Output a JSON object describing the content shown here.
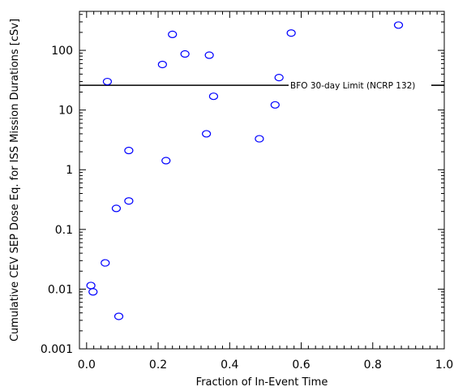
{
  "chart_data": {
    "type": "scatter",
    "xlabel": "Fraction of In-Event Time",
    "ylabel": "Cumulative CEV SEP Dose Eq. for ISS Mission Durations [cSv]",
    "xlim": [
      -0.02,
      1.0
    ],
    "ylim": [
      0.001,
      450
    ],
    "y_scale": "log",
    "x_ticks": [
      0.0,
      0.2,
      0.4,
      0.6,
      0.8,
      1.0
    ],
    "x_tick_labels": [
      "0.0",
      "0.2",
      "0.4",
      "0.6",
      "0.8",
      "1.0"
    ],
    "y_ticks": [
      0.001,
      0.01,
      0.1,
      1,
      10,
      100
    ],
    "y_tick_labels": [
      "0.001",
      "0.01",
      "0.1",
      "1",
      "10",
      "100"
    ],
    "grid": false,
    "marker_color": "#0000ff",
    "series": [
      {
        "points": [
          [
            0.012,
            0.0115
          ],
          [
            0.018,
            0.009
          ],
          [
            0.052,
            0.0275
          ],
          [
            0.058,
            30
          ],
          [
            0.083,
            0.225
          ],
          [
            0.09,
            0.0035
          ],
          [
            0.118,
            0.3
          ],
          [
            0.118,
            2.1
          ],
          [
            0.212,
            58
          ],
          [
            0.222,
            1.42
          ],
          [
            0.24,
            185
          ],
          [
            0.275,
            87
          ],
          [
            0.335,
            4.0
          ],
          [
            0.343,
            83
          ],
          [
            0.355,
            17
          ],
          [
            0.483,
            3.3
          ],
          [
            0.527,
            12.2
          ],
          [
            0.538,
            35
          ],
          [
            0.572,
            195
          ],
          [
            0.872,
            265
          ]
        ]
      }
    ],
    "reference_line": {
      "y": 26,
      "label": "BFO 30-day Limit (NCRP 132)"
    }
  }
}
